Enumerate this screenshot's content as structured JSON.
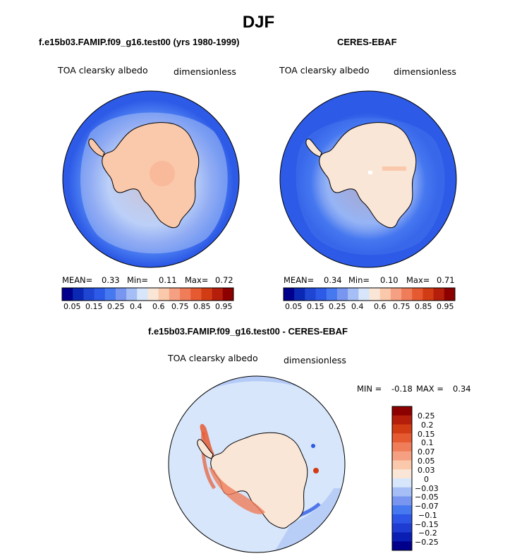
{
  "figure": {
    "season": "DJF"
  },
  "panels": [
    {
      "title": "f.e15b03.FAMIP.f09_g16.test00 (yrs 1980-1999)",
      "variable": "TOA clearsky albedo",
      "units": "dimensionless",
      "mean_label": "MEAN=",
      "mean": "0.33",
      "min_label": "Min=",
      "min": "0.11",
      "max_label": "Max=",
      "max": "0.72"
    },
    {
      "title": "CERES-EBAF",
      "variable": "TOA clearsky albedo",
      "units": "dimensionless",
      "mean_label": "MEAN=",
      "mean": "0.34",
      "min_label": "Min=",
      "min": "0.10",
      "max_label": "Max=",
      "max": "0.71"
    },
    {
      "title": "f.e15b03.FAMIP.f09_g16.test00 - CERES-EBAF",
      "variable": "TOA clearsky albedo",
      "units": "dimensionless",
      "min_label": "MIN =",
      "min": "-0.18",
      "max_label": "MAX =",
      "max": "0.34"
    }
  ],
  "colors": {
    "albedo_scale": [
      "#00008c",
      "#0a28b4",
      "#1e46d2",
      "#2d5ae6",
      "#4678f0",
      "#7896f0",
      "#a5bef5",
      "#d7e6fa",
      "#fae6d7",
      "#fac8aa",
      "#f5a082",
      "#f07d5a",
      "#e65a32",
      "#d23c14",
      "#b41e0a",
      "#8c0000"
    ],
    "diff_scale": [
      "#00008c",
      "#0a1eb4",
      "#1e3cd2",
      "#2d55e6",
      "#4678f0",
      "#7896f0",
      "#a5bef5",
      "#d7e6fa",
      "#fae6d7",
      "#fac8aa",
      "#f5a082",
      "#f07d5a",
      "#e65a32",
      "#d23c14",
      "#b41e0a",
      "#8c0000"
    ],
    "ocean_model": "#2d5ae6",
    "ocean_obs": "#2d5ae6",
    "land": "#fac8aa",
    "diff_background": "#d7e6fa"
  },
  "chart_data": [
    {
      "type": "heatmap",
      "title": "f.e15b03.FAMIP.f09_g16.test00 (yrs 1980-1999)",
      "variable": "TOA clearsky albedo",
      "units": "dimensionless",
      "projection": "south polar stereographic",
      "mean": 0.33,
      "min": 0.11,
      "max": 0.72,
      "colorbar_ticks": [
        "0.05",
        "0.15",
        "0.25",
        "0.4",
        "0.6",
        "0.75",
        "0.85",
        "0.95"
      ]
    },
    {
      "type": "heatmap",
      "title": "CERES-EBAF",
      "variable": "TOA clearsky albedo",
      "units": "dimensionless",
      "projection": "south polar stereographic",
      "mean": 0.34,
      "min": 0.1,
      "max": 0.71,
      "colorbar_ticks": [
        "0.05",
        "0.15",
        "0.25",
        "0.4",
        "0.6",
        "0.75",
        "0.85",
        "0.95"
      ]
    },
    {
      "type": "heatmap",
      "title": "f.e15b03.FAMIP.f09_g16.test00 - CERES-EBAF",
      "variable": "TOA clearsky albedo",
      "units": "dimensionless",
      "projection": "south polar stereographic",
      "min": -0.18,
      "max": 0.34,
      "colorbar_ticks": [
        "0.25",
        "0.2",
        "0.15",
        "0.1",
        "0.07",
        "0.05",
        "0.03",
        "0",
        "−0.03",
        "−0.05",
        "−0.07",
        "−0.1",
        "−0.15",
        "−0.2",
        "−0.25"
      ]
    }
  ]
}
